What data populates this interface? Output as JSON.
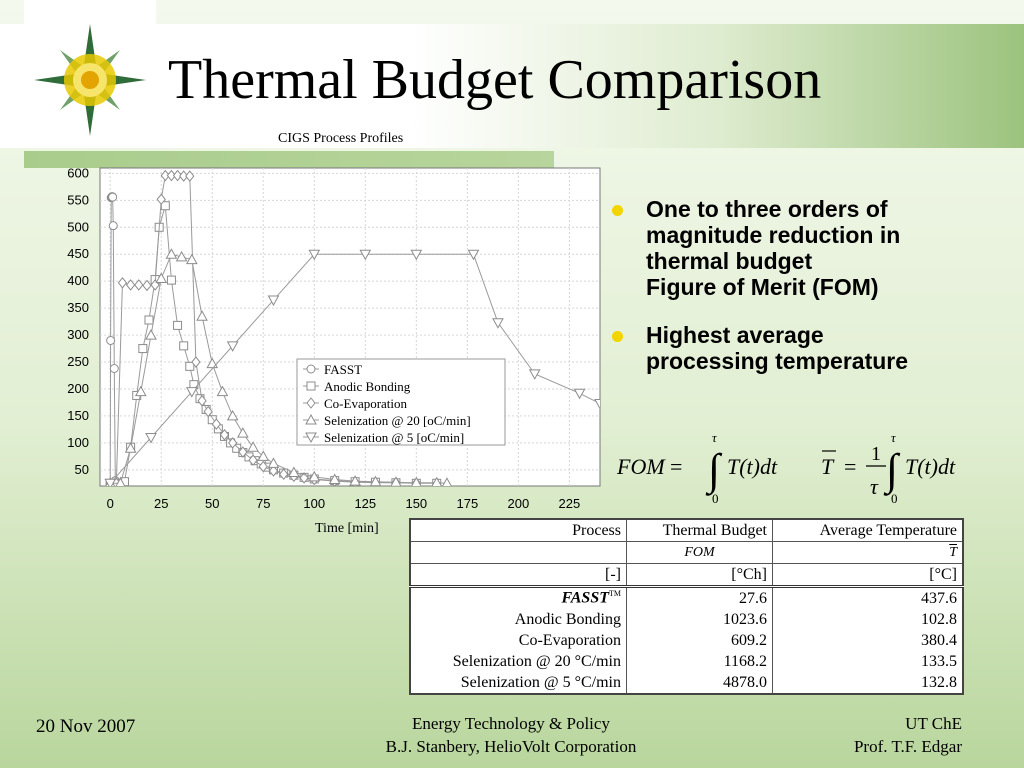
{
  "slide": {
    "title": "Thermal Budget Comparison",
    "chart_heading": "CIGS Process Profiles",
    "x_axis_label": "Time [min]"
  },
  "bullets": [
    {
      "text": "One to three orders of\nmagnitude reduction in\nthermal budget\nFigure of Merit (FOM)"
    },
    {
      "text": "Highest average\nprocessing temperature"
    }
  ],
  "formulas": {
    "fom_label": "FOM",
    "tbar_label": "T",
    "integrand": "T(t)dt",
    "upper_limit": "τ",
    "lower_limit": "0",
    "fraction_numerator": "1",
    "fraction_denominator": "τ"
  },
  "table": {
    "headers": [
      "Process",
      "Thermal Budget",
      "Average Temperature"
    ],
    "symbols": [
      "",
      "FOM",
      "T"
    ],
    "units": [
      "[-]",
      "[°Ch]",
      "[°C]"
    ],
    "trademark": "TM",
    "rows": [
      {
        "process": "FASST",
        "thermal_budget": "27.6",
        "avg_temp": "437.6"
      },
      {
        "process": "Anodic Bonding",
        "thermal_budget": "1023.6",
        "avg_temp": "102.8"
      },
      {
        "process": "Co-Evaporation",
        "thermal_budget": "609.2",
        "avg_temp": "380.4"
      },
      {
        "process": "Selenization @ 20 °C/min",
        "thermal_budget": "1168.2",
        "avg_temp": "133.5"
      },
      {
        "process": "Selenization @ 5 °C/min",
        "thermal_budget": "4878.0",
        "avg_temp": "132.8"
      }
    ]
  },
  "footer": {
    "date": "20 Nov 2007",
    "center_line1": "Energy Technology & Policy",
    "center_line2": "B.J. Stanbery, HelioVolt Corporation",
    "right_line1": "UT ChE",
    "right_line2": "Prof. T.F. Edgar"
  },
  "chart_data": {
    "type": "line",
    "title": "CIGS Process Profiles",
    "xlabel": "Time [min]",
    "ylabel": "",
    "xlim": [
      -5,
      240
    ],
    "ylim": [
      20,
      610
    ],
    "xticks": [
      0,
      25,
      50,
      75,
      100,
      125,
      150,
      175,
      200,
      225
    ],
    "yticks": [
      50,
      100,
      150,
      200,
      250,
      300,
      350,
      400,
      450,
      500,
      550,
      600
    ],
    "grid": true,
    "legend_position": "center-right",
    "series": [
      {
        "name": "FASST",
        "marker": "circle",
        "x": [
          0,
          0.2,
          0.5,
          0.8,
          1.0,
          1.2,
          1.5,
          2,
          2.5,
          3,
          4
        ],
        "y": [
          25,
          290,
          555,
          556,
          557,
          556,
          503,
          238,
          30,
          26,
          25
        ]
      },
      {
        "name": "Anodic Bonding",
        "marker": "square",
        "x": [
          0,
          3,
          7,
          10,
          13,
          16,
          19,
          22,
          24,
          27,
          30,
          33,
          36,
          39,
          41,
          44,
          47,
          50,
          53,
          56,
          59,
          62,
          65,
          68,
          71,
          74,
          77,
          80,
          85,
          90,
          95,
          100,
          110,
          120,
          130,
          140,
          150,
          160
        ],
        "y": [
          25,
          25,
          28,
          92,
          188,
          275,
          328,
          403,
          500,
          540,
          402,
          318,
          280,
          242,
          208,
          182,
          162,
          143,
          126,
          112,
          100,
          90,
          82,
          74,
          67,
          61,
          55,
          50,
          44,
          40,
          36,
          33,
          30,
          28,
          27,
          26,
          25,
          25
        ]
      },
      {
        "name": "Co-Evaporation",
        "marker": "diamond",
        "x": [
          0,
          3,
          6,
          10,
          14,
          18,
          22,
          25,
          27,
          30,
          33,
          36,
          39,
          42,
          45,
          48,
          52,
          56,
          60,
          65,
          70,
          75,
          80,
          85,
          90,
          95,
          100,
          110,
          120,
          130,
          140,
          150
        ],
        "y": [
          25,
          25,
          397,
          393,
          393,
          392,
          393,
          552,
          596,
          596,
          596,
          595,
          595,
          250,
          178,
          158,
          135,
          115,
          100,
          83,
          68,
          56,
          48,
          42,
          38,
          35,
          32,
          29,
          27,
          26,
          26,
          25
        ]
      },
      {
        "name": "Selenization @ 20 [oC/min]",
        "marker": "triangle-up",
        "x": [
          0,
          5,
          10,
          15,
          20,
          25,
          30,
          35,
          40,
          45,
          50,
          55,
          60,
          65,
          70,
          75,
          80,
          90,
          100,
          110,
          120,
          130,
          140,
          150,
          160,
          165
        ],
        "y": [
          25,
          25,
          90,
          195,
          300,
          405,
          450,
          445,
          440,
          335,
          247,
          195,
          150,
          118,
          92,
          75,
          62,
          45,
          37,
          32,
          29,
          28,
          27,
          26,
          26,
          25
        ]
      },
      {
        "name": "Selenization @  5 [oC/min]",
        "marker": "triangle-down",
        "x": [
          0,
          20,
          40,
          60,
          80,
          100,
          125,
          150,
          178,
          190,
          208,
          230,
          240
        ],
        "y": [
          25,
          110,
          195,
          280,
          365,
          450,
          450,
          450,
          450,
          323,
          228,
          192,
          173
        ]
      }
    ]
  }
}
